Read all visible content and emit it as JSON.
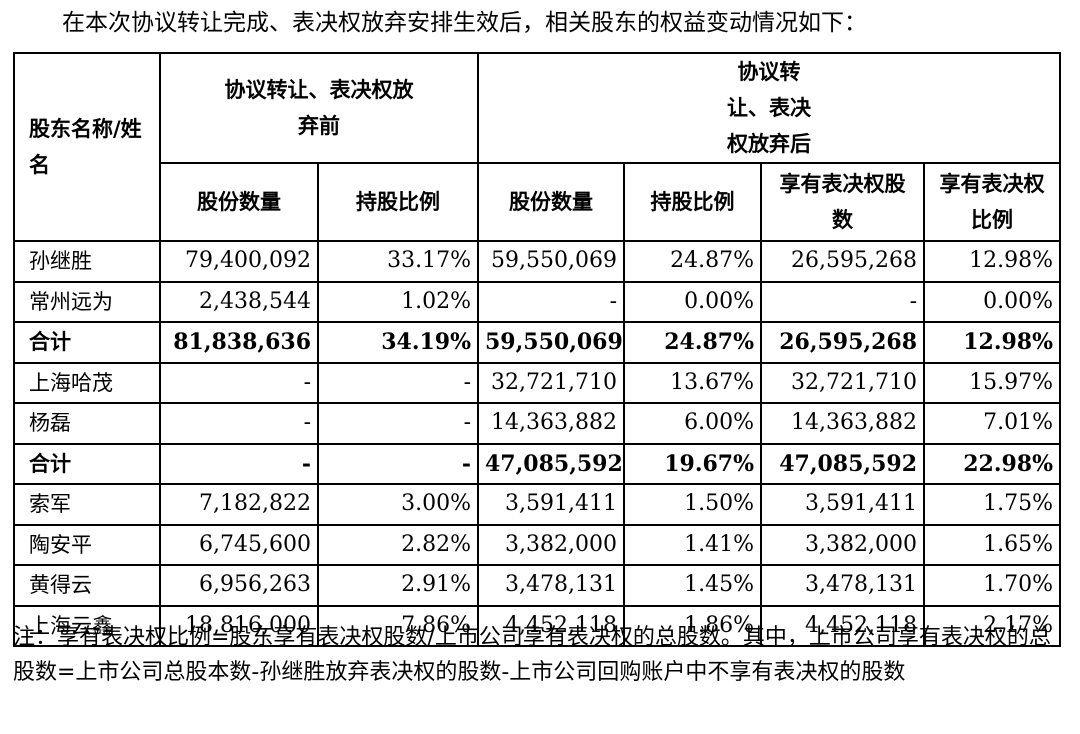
{
  "intro": "在本次协议转让完成、表决权放弃安排生效后，相关股东的权益变动情况如下：",
  "table": {
    "header_name": "股东名称/姓名",
    "group_before": "协议转让、表决权放弃前",
    "group_after": "协议转让、表决权放弃后",
    "sub_headers": [
      "股份数量",
      "持股比例",
      "股份数量",
      "持股比例",
      "享有表决权股数",
      "享有表决权比例"
    ],
    "rows": [
      {
        "name": "孙继胜",
        "total": false,
        "cells": [
          "79,400,092",
          "33.17%",
          "59,550,069",
          "24.87%",
          "26,595,268",
          "12.98%"
        ]
      },
      {
        "name": "常州远为",
        "total": false,
        "cells": [
          "2,438,544",
          "1.02%",
          "-",
          "0.00%",
          "-",
          "0.00%"
        ]
      },
      {
        "name": "合计",
        "total": true,
        "cells": [
          "81,838,636",
          "34.19%",
          "59,550,069",
          "24.87%",
          "26,595,268",
          "12.98%"
        ]
      },
      {
        "name": "上海哈茂",
        "total": false,
        "cells": [
          "-",
          "-",
          "32,721,710",
          "13.67%",
          "32,721,710",
          "15.97%"
        ]
      },
      {
        "name": "杨磊",
        "total": false,
        "cells": [
          "-",
          "-",
          "14,363,882",
          "6.00%",
          "14,363,882",
          "7.01%"
        ]
      },
      {
        "name": "合计",
        "total": true,
        "cells": [
          "-",
          "-",
          "47,085,592",
          "19.67%",
          "47,085,592",
          "22.98%"
        ]
      },
      {
        "name": "索军",
        "total": false,
        "cells": [
          "7,182,822",
          "3.00%",
          "3,591,411",
          "1.50%",
          "3,591,411",
          "1.75%"
        ]
      },
      {
        "name": "陶安平",
        "total": false,
        "cells": [
          "6,745,600",
          "2.82%",
          "3,382,000",
          "1.41%",
          "3,382,000",
          "1.65%"
        ]
      },
      {
        "name": "黄得云",
        "total": false,
        "cells": [
          "6,956,263",
          "2.91%",
          "3,478,131",
          "1.45%",
          "3,478,131",
          "1.70%"
        ]
      },
      {
        "name": "上海云鑫",
        "total": false,
        "cells": [
          "18,816,000",
          "7.86%",
          "4,452,118",
          "1.86%",
          "4,452,118",
          "2.17%"
        ]
      }
    ]
  },
  "note": "注：享有表决权比例=股东享有表决权股数/上市公司享有表决权的总股数。其中，上市公司享有表决权的总股数=上市公司总股本数-孙继胜放弃表决权的股数-上市公司回购账户中不享有表决权的股数"
}
